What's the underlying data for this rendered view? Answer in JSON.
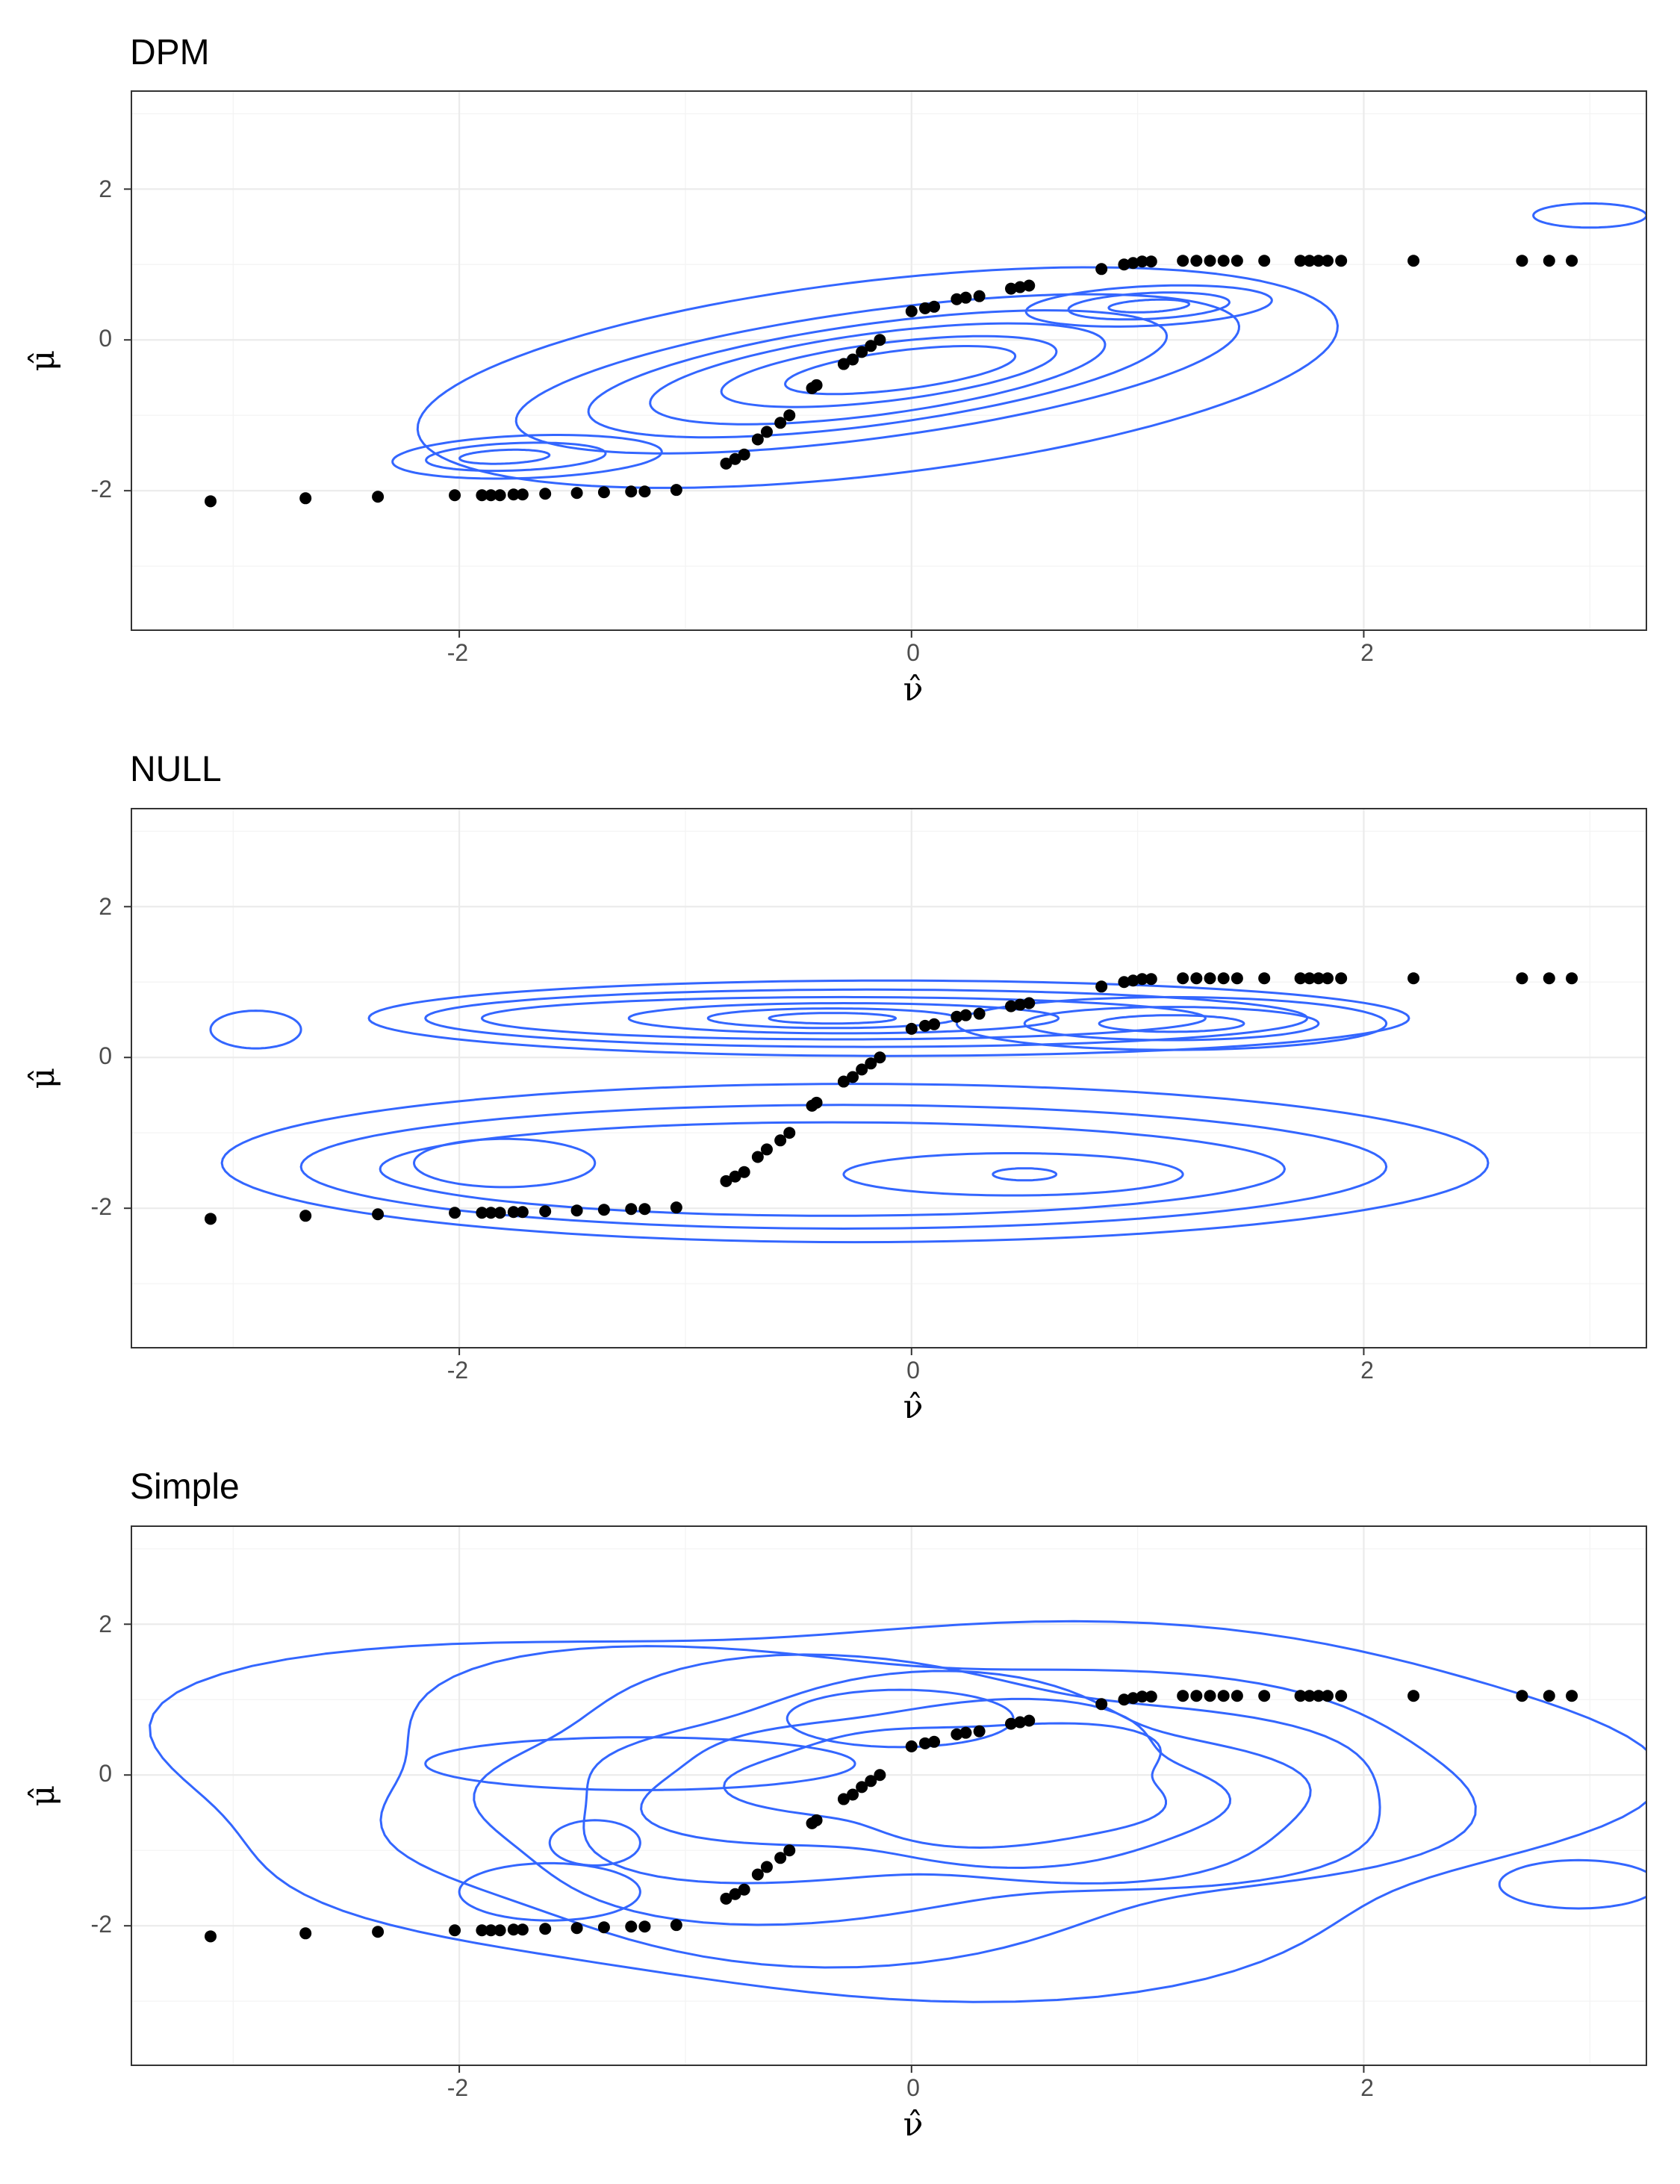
{
  "colors": {
    "contour": "#3366FF",
    "points": "#000000",
    "grid": "#EBEBEB",
    "border": "#333333"
  },
  "chart_data": [
    {
      "type": "scatter",
      "overlay": "2d density contours",
      "title": "DPM",
      "xlabel": "ν̂",
      "ylabel": "μ̂",
      "xlim": [
        -3.45,
        3.25
      ],
      "ylim": [
        -3.85,
        3.3
      ],
      "xticks": [
        -2,
        0,
        2
      ],
      "yticks": [
        -2,
        0,
        2
      ],
      "grid": true,
      "points": [
        [
          -3.1,
          -2.14
        ],
        [
          -2.68,
          -2.1
        ],
        [
          -2.36,
          -2.08
        ],
        [
          -2.02,
          -2.06
        ],
        [
          -1.9,
          -2.06
        ],
        [
          -1.86,
          -2.06
        ],
        [
          -1.82,
          -2.06
        ],
        [
          -1.76,
          -2.05
        ],
        [
          -1.72,
          -2.05
        ],
        [
          -1.62,
          -2.04
        ],
        [
          -1.48,
          -2.03
        ],
        [
          -1.36,
          -2.02
        ],
        [
          -1.24,
          -2.01
        ],
        [
          -1.18,
          -2.01
        ],
        [
          -1.04,
          -1.99
        ],
        [
          -0.82,
          -1.64
        ],
        [
          -0.78,
          -1.58
        ],
        [
          -0.74,
          -1.52
        ],
        [
          -0.68,
          -1.32
        ],
        [
          -0.64,
          -1.22
        ],
        [
          -0.58,
          -1.1
        ],
        [
          -0.54,
          -1.0
        ],
        [
          -0.44,
          -0.64
        ],
        [
          -0.42,
          -0.6
        ],
        [
          -0.3,
          -0.32
        ],
        [
          -0.26,
          -0.26
        ],
        [
          -0.22,
          -0.16
        ],
        [
          -0.18,
          -0.08
        ],
        [
          -0.14,
          0.0
        ],
        [
          0.0,
          0.38
        ],
        [
          0.06,
          0.42
        ],
        [
          0.1,
          0.44
        ],
        [
          0.2,
          0.54
        ],
        [
          0.24,
          0.56
        ],
        [
          0.3,
          0.58
        ],
        [
          0.44,
          0.68
        ],
        [
          0.48,
          0.7
        ],
        [
          0.52,
          0.72
        ],
        [
          0.84,
          0.94
        ],
        [
          0.94,
          1.0
        ],
        [
          0.98,
          1.02
        ],
        [
          1.02,
          1.04
        ],
        [
          1.06,
          1.04
        ],
        [
          1.2,
          1.05
        ],
        [
          1.26,
          1.05
        ],
        [
          1.32,
          1.05
        ],
        [
          1.38,
          1.05
        ],
        [
          1.44,
          1.05
        ],
        [
          1.56,
          1.05
        ],
        [
          1.72,
          1.05
        ],
        [
          1.76,
          1.05
        ],
        [
          1.8,
          1.05
        ],
        [
          1.84,
          1.05
        ],
        [
          1.9,
          1.05
        ],
        [
          2.22,
          1.05
        ],
        [
          2.7,
          1.05
        ],
        [
          2.82,
          1.05
        ],
        [
          2.92,
          1.05
        ]
      ],
      "density_contours": [
        {
          "center": [
            -0.15,
            -0.5
          ],
          "sx": 2.2,
          "sy": 1.2,
          "angle": 27
        },
        {
          "center": [
            -0.15,
            -0.45
          ],
          "sx": 1.75,
          "sy": 0.78,
          "angle": 27
        },
        {
          "center": [
            -0.15,
            -0.45
          ],
          "sx": 1.4,
          "sy": 0.62,
          "angle": 27
        },
        {
          "center": [
            -0.15,
            -0.45
          ],
          "sx": 1.1,
          "sy": 0.5,
          "angle": 27
        },
        {
          "center": [
            -0.1,
            -0.42
          ],
          "sx": 0.8,
          "sy": 0.36,
          "angle": 25
        },
        {
          "center": [
            -0.05,
            -0.4
          ],
          "sx": 0.55,
          "sy": 0.24,
          "angle": 25
        },
        {
          "center": [
            -1.7,
            -1.55
          ],
          "sx": 0.6,
          "sy": 0.28,
          "angle": 8
        },
        {
          "center": [
            -1.75,
            -1.55
          ],
          "sx": 0.4,
          "sy": 0.18,
          "angle": 8
        },
        {
          "center": [
            -1.8,
            -1.55
          ],
          "sx": 0.2,
          "sy": 0.09,
          "angle": 8
        },
        {
          "center": [
            1.05,
            0.45
          ],
          "sx": 0.55,
          "sy": 0.26,
          "angle": 10
        },
        {
          "center": [
            1.05,
            0.45
          ],
          "sx": 0.36,
          "sy": 0.17,
          "angle": 10
        },
        {
          "center": [
            1.05,
            0.45
          ],
          "sx": 0.18,
          "sy": 0.08,
          "angle": 10
        },
        {
          "center": [
            3.0,
            1.65
          ],
          "sx": 0.25,
          "sy": 0.16,
          "angle": 0
        }
      ]
    },
    {
      "type": "scatter",
      "overlay": "2d density contours",
      "title": "NULL",
      "xlabel": "ν̂",
      "ylabel": "μ̂",
      "xlim": [
        -3.45,
        3.25
      ],
      "ylim": [
        -3.85,
        3.3
      ],
      "xticks": [
        -2,
        0,
        2
      ],
      "yticks": [
        -2,
        0,
        2
      ],
      "grid": true,
      "points": [
        [
          -3.1,
          -2.14
        ],
        [
          -2.68,
          -2.1
        ],
        [
          -2.36,
          -2.08
        ],
        [
          -2.02,
          -2.06
        ],
        [
          -1.9,
          -2.06
        ],
        [
          -1.86,
          -2.06
        ],
        [
          -1.82,
          -2.06
        ],
        [
          -1.76,
          -2.05
        ],
        [
          -1.72,
          -2.05
        ],
        [
          -1.62,
          -2.04
        ],
        [
          -1.48,
          -2.03
        ],
        [
          -1.36,
          -2.02
        ],
        [
          -1.24,
          -2.01
        ],
        [
          -1.18,
          -2.01
        ],
        [
          -1.04,
          -1.99
        ],
        [
          -0.82,
          -1.64
        ],
        [
          -0.78,
          -1.58
        ],
        [
          -0.74,
          -1.52
        ],
        [
          -0.68,
          -1.32
        ],
        [
          -0.64,
          -1.22
        ],
        [
          -0.58,
          -1.1
        ],
        [
          -0.54,
          -1.0
        ],
        [
          -0.44,
          -0.64
        ],
        [
          -0.42,
          -0.6
        ],
        [
          -0.3,
          -0.32
        ],
        [
          -0.26,
          -0.26
        ],
        [
          -0.22,
          -0.16
        ],
        [
          -0.18,
          -0.08
        ],
        [
          -0.14,
          0.0
        ],
        [
          0.0,
          0.38
        ],
        [
          0.06,
          0.42
        ],
        [
          0.1,
          0.44
        ],
        [
          0.2,
          0.54
        ],
        [
          0.24,
          0.56
        ],
        [
          0.3,
          0.58
        ],
        [
          0.44,
          0.68
        ],
        [
          0.48,
          0.7
        ],
        [
          0.52,
          0.72
        ],
        [
          0.84,
          0.94
        ],
        [
          0.94,
          1.0
        ],
        [
          0.98,
          1.02
        ],
        [
          1.02,
          1.04
        ],
        [
          1.06,
          1.04
        ],
        [
          1.2,
          1.05
        ],
        [
          1.26,
          1.05
        ],
        [
          1.32,
          1.05
        ],
        [
          1.38,
          1.05
        ],
        [
          1.44,
          1.05
        ],
        [
          1.56,
          1.05
        ],
        [
          1.72,
          1.05
        ],
        [
          1.76,
          1.05
        ],
        [
          1.8,
          1.05
        ],
        [
          1.84,
          1.05
        ],
        [
          1.9,
          1.05
        ],
        [
          2.22,
          1.05
        ],
        [
          2.7,
          1.05
        ],
        [
          2.82,
          1.05
        ],
        [
          2.92,
          1.05
        ]
      ],
      "density_contours": [
        {
          "center": [
            -0.1,
            0.52
          ],
          "sx": 2.3,
          "sy": 0.5,
          "angle": 0
        },
        {
          "center": [
            -0.2,
            0.52
          ],
          "sx": 1.95,
          "sy": 0.38,
          "angle": 0
        },
        {
          "center": [
            -0.3,
            0.52
          ],
          "sx": 1.6,
          "sy": 0.28,
          "angle": 0
        },
        {
          "center": [
            -0.3,
            0.52
          ],
          "sx": 0.95,
          "sy": 0.2,
          "angle": 0
        },
        {
          "center": [
            -0.35,
            0.52
          ],
          "sx": 0.55,
          "sy": 0.13,
          "angle": 0
        },
        {
          "center": [
            -0.35,
            0.52
          ],
          "sx": 0.28,
          "sy": 0.07,
          "angle": 0
        },
        {
          "center": [
            1.15,
            0.45
          ],
          "sx": 0.95,
          "sy": 0.35,
          "angle": 0
        },
        {
          "center": [
            1.15,
            0.45
          ],
          "sx": 0.65,
          "sy": 0.22,
          "angle": 0
        },
        {
          "center": [
            1.15,
            0.45
          ],
          "sx": 0.32,
          "sy": 0.11,
          "angle": 0
        },
        {
          "center": [
            -0.25,
            -1.4
          ],
          "sx": 2.8,
          "sy": 1.05,
          "angle": 0
        },
        {
          "center": [
            -0.3,
            -1.45
          ],
          "sx": 2.4,
          "sy": 0.82,
          "angle": 0
        },
        {
          "center": [
            -0.35,
            -1.48
          ],
          "sx": 2.0,
          "sy": 0.62,
          "angle": 0
        },
        {
          "center": [
            -1.8,
            -1.4
          ],
          "sx": 0.4,
          "sy": 0.32,
          "angle": 0
        },
        {
          "center": [
            0.45,
            -1.55
          ],
          "sx": 0.75,
          "sy": 0.28,
          "angle": 0
        },
        {
          "center": [
            0.5,
            -1.55
          ],
          "sx": 0.14,
          "sy": 0.08,
          "angle": 0
        },
        {
          "center": [
            -2.9,
            0.37
          ],
          "sx": 0.2,
          "sy": 0.25,
          "angle": 0
        }
      ]
    },
    {
      "type": "scatter",
      "overlay": "2d density contours",
      "title": "Simple",
      "xlabel": "ν̂",
      "ylabel": "μ̂",
      "xlim": [
        -3.45,
        3.25
      ],
      "ylim": [
        -3.85,
        3.3
      ],
      "xticks": [
        -2,
        0,
        2
      ],
      "yticks": [
        -2,
        0,
        2
      ],
      "grid": true,
      "points": [
        [
          -3.1,
          -2.14
        ],
        [
          -2.68,
          -2.1
        ],
        [
          -2.36,
          -2.08
        ],
        [
          -2.02,
          -2.06
        ],
        [
          -1.9,
          -2.06
        ],
        [
          -1.86,
          -2.06
        ],
        [
          -1.82,
          -2.06
        ],
        [
          -1.76,
          -2.05
        ],
        [
          -1.72,
          -2.05
        ],
        [
          -1.62,
          -2.04
        ],
        [
          -1.48,
          -2.03
        ],
        [
          -1.36,
          -2.02
        ],
        [
          -1.24,
          -2.01
        ],
        [
          -1.18,
          -2.01
        ],
        [
          -1.04,
          -1.99
        ],
        [
          -0.82,
          -1.64
        ],
        [
          -0.78,
          -1.58
        ],
        [
          -0.74,
          -1.52
        ],
        [
          -0.68,
          -1.32
        ],
        [
          -0.64,
          -1.22
        ],
        [
          -0.58,
          -1.1
        ],
        [
          -0.54,
          -1.0
        ],
        [
          -0.44,
          -0.64
        ],
        [
          -0.42,
          -0.6
        ],
        [
          -0.3,
          -0.32
        ],
        [
          -0.26,
          -0.26
        ],
        [
          -0.22,
          -0.16
        ],
        [
          -0.18,
          -0.08
        ],
        [
          -0.14,
          0.0
        ],
        [
          0.0,
          0.38
        ],
        [
          0.06,
          0.42
        ],
        [
          0.1,
          0.44
        ],
        [
          0.2,
          0.54
        ],
        [
          0.24,
          0.56
        ],
        [
          0.3,
          0.58
        ],
        [
          0.44,
          0.68
        ],
        [
          0.48,
          0.7
        ],
        [
          0.52,
          0.72
        ],
        [
          0.84,
          0.94
        ],
        [
          0.94,
          1.0
        ],
        [
          0.98,
          1.02
        ],
        [
          1.02,
          1.04
        ],
        [
          1.06,
          1.04
        ],
        [
          1.2,
          1.05
        ],
        [
          1.26,
          1.05
        ],
        [
          1.32,
          1.05
        ],
        [
          1.38,
          1.05
        ],
        [
          1.44,
          1.05
        ],
        [
          1.56,
          1.05
        ],
        [
          1.72,
          1.05
        ],
        [
          1.76,
          1.05
        ],
        [
          1.8,
          1.05
        ],
        [
          1.84,
          1.05
        ],
        [
          1.9,
          1.05
        ],
        [
          2.22,
          1.05
        ],
        [
          2.7,
          1.05
        ],
        [
          2.82,
          1.05
        ],
        [
          2.92,
          1.05
        ]
      ],
      "density_contours": [
        {
          "center": [
            -0.1,
            -0.3
          ],
          "sx": 3.2,
          "sy": 2.45,
          "angle": 0,
          "wobble": 0.09
        },
        {
          "center": [
            -0.1,
            -0.3
          ],
          "sx": 2.4,
          "sy": 2.0,
          "angle": 0,
          "wobble": 0.1
        },
        {
          "center": [
            0.0,
            -0.25
          ],
          "sx": 2.0,
          "sy": 1.65,
          "angle": 0,
          "wobble": 0.1
        },
        {
          "center": [
            0.1,
            -0.2
          ],
          "sx": 1.6,
          "sy": 1.35,
          "angle": 0,
          "wobble": 0.11
        },
        {
          "center": [
            0.15,
            -0.15
          ],
          "sx": 1.25,
          "sy": 1.05,
          "angle": 0,
          "wobble": 0.1
        },
        {
          "center": [
            0.25,
            -0.1
          ],
          "sx": 0.95,
          "sy": 0.8,
          "angle": 0,
          "wobble": 0.1
        },
        {
          "center": [
            -1.2,
            0.15
          ],
          "sx": 0.95,
          "sy": 0.35,
          "angle": 0
        },
        {
          "center": [
            -1.4,
            -0.9
          ],
          "sx": 0.2,
          "sy": 0.3,
          "angle": 0
        },
        {
          "center": [
            -1.6,
            -1.55
          ],
          "sx": 0.4,
          "sy": 0.38,
          "angle": 0
        },
        {
          "center": [
            -0.05,
            0.75
          ],
          "sx": 0.5,
          "sy": 0.38,
          "angle": 0
        },
        {
          "center": [
            2.95,
            -1.45
          ],
          "sx": 0.35,
          "sy": 0.32,
          "angle": 0
        }
      ]
    }
  ]
}
